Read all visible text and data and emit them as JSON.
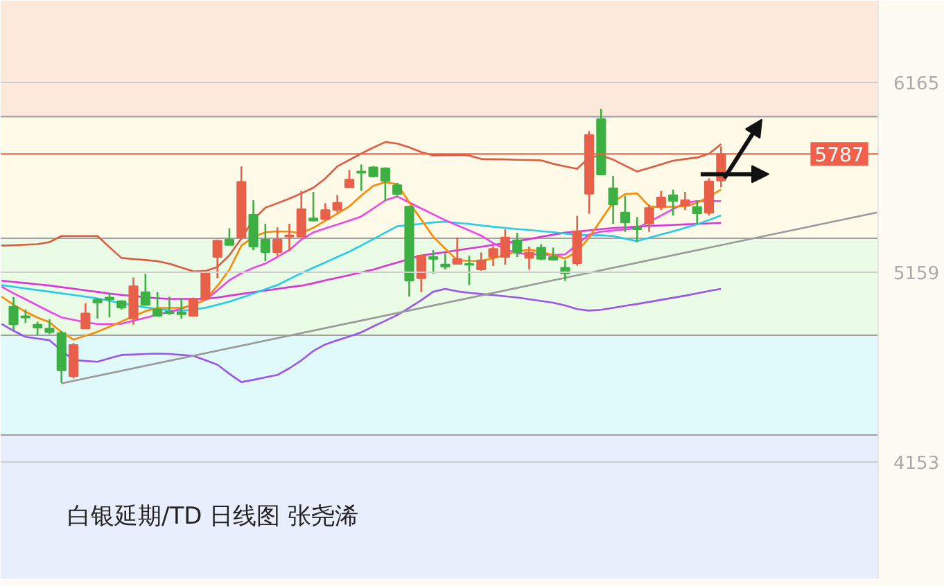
{
  "chart_data": {
    "type": "candlestick",
    "title": "白银延期/TD  日线图  张尧浠",
    "categories": [
      null,
      null,
      null,
      null,
      null,
      null,
      null,
      null,
      null,
      null,
      null,
      null,
      null,
      null,
      null,
      null,
      null,
      null,
      null,
      null,
      null,
      null,
      null,
      null,
      null,
      null,
      null,
      null,
      null,
      null,
      null,
      null,
      null,
      null,
      null,
      null,
      null,
      null,
      null,
      null,
      null,
      null,
      null,
      null,
      null,
      null,
      null,
      null,
      null,
      null,
      null,
      null,
      null,
      null,
      null,
      null,
      null,
      null,
      null,
      null,
      null,
      null,
      null,
      null,
      null,
      null,
      null,
      null,
      null,
      null,
      null,
      null,
      null,
      null
    ],
    "ohlc": [
      null,
      [
        4978,
        5029,
        4855,
        4884
      ],
      [
        4927,
        4963,
        4891,
        4920
      ],
      [
        4882,
        4898,
        4826,
        4867
      ],
      [
        4862,
        4911,
        4833,
        4843
      ],
      [
        4838,
        4850,
        4573,
        4640
      ],
      [
        4609,
        4785,
        4597,
        4775
      ],
      [
        4862,
        4995,
        4862,
        4942
      ],
      [
        5014,
        5021,
        4915,
        5000
      ],
      [
        5026,
        5048,
        4922,
        5016
      ],
      [
        5007,
        5012,
        4963,
        4973
      ],
      [
        4915,
        5132,
        4882,
        5086
      ],
      [
        5055,
        5152,
        4983,
        4987
      ],
      [
        4963,
        5055,
        4925,
        4929
      ],
      [
        4951,
        5031,
        4934,
        4944
      ],
      [
        4947,
        5023,
        4915,
        4937
      ],
      [
        4929,
        5026,
        4927,
        5019
      ],
      [
        5019,
        5168,
        5019,
        5159
      ],
      [
        5241,
        5333,
        5128,
        5327
      ],
      [
        5333,
        5393,
        5304,
        5304
      ],
      [
        5345,
        5721,
        5333,
        5639
      ],
      [
        5465,
        5542,
        5277,
        5296
      ],
      [
        5333,
        5417,
        5219,
        5267
      ],
      [
        5267,
        5398,
        5248,
        5333
      ],
      [
        5349,
        5417,
        5272,
        5356
      ],
      [
        5349,
        5591,
        5345,
        5494
      ],
      [
        5446,
        5586,
        5429,
        5434
      ],
      [
        5441,
        5526,
        5436,
        5490
      ],
      [
        5490,
        5569,
        5477,
        5528
      ],
      [
        5610,
        5702,
        5610,
        5651
      ],
      [
        5694,
        5731,
        5591,
        5687
      ],
      [
        5716,
        5723,
        5663,
        5668
      ],
      [
        5711,
        5716,
        5537,
        5644
      ],
      [
        5622,
        5634,
        5566,
        5574
      ],
      [
        5508,
        5513,
        5031,
        5115
      ],
      [
        5128,
        5253,
        5055,
        5248
      ],
      [
        5241,
        5277,
        5152,
        5231
      ],
      [
        5202,
        5260,
        5175,
        5190
      ],
      [
        5204,
        5345,
        5204,
        5231
      ],
      [
        5204,
        5248,
        5092,
        5200
      ],
      [
        5175,
        5265,
        5168,
        5224
      ],
      [
        5241,
        5296,
        5193,
        5284
      ],
      [
        5241,
        5388,
        5200,
        5345
      ],
      [
        5330,
        5369,
        5241,
        5267
      ],
      [
        5236,
        5296,
        5175,
        5265
      ],
      [
        5291,
        5309,
        5224,
        5231
      ],
      [
        5241,
        5291,
        5224,
        5226
      ],
      [
        5184,
        5224,
        5115,
        5154
      ],
      [
        5208,
        5459,
        5195,
        5378
      ],
      [
        5576,
        5908,
        5470,
        5888
      ],
      [
        5972,
        6025,
        5678,
        5678
      ],
      [
        5605,
        5670,
        5417,
        5519
      ],
      [
        5477,
        5566,
        5374,
        5424
      ],
      [
        5400,
        5453,
        5320,
        5388
      ],
      [
        5417,
        5519,
        5374,
        5501
      ],
      [
        5508,
        5591,
        5490,
        5557
      ],
      [
        5569,
        5598,
        5461,
        5537
      ],
      [
        5513,
        5586,
        5490,
        5542
      ],
      [
        5506,
        5537,
        5417,
        5472
      ],
      [
        5475,
        5658,
        5461,
        5642
      ],
      [
        5646,
        5827,
        5610,
        5787
      ],
      null,
      null,
      null,
      null,
      null,
      null,
      null,
      null,
      null,
      null,
      null,
      null,
      null
    ],
    "colors": [
      null,
      "#3cb043",
      "#3cb043",
      "#3cb043",
      "#3cb043",
      "#3cb043",
      "#e8604a",
      "#e8604a",
      "#3cb043",
      "#3cb043",
      "#3cb043",
      "#e8604a",
      "#3cb043",
      "#3cb043",
      "#3cb043",
      "#3cb043",
      "#e8604a",
      "#e8604a",
      "#e8604a",
      "#3cb043",
      "#e8604a",
      "#3cb043",
      "#3cb043",
      "#e8604a",
      "#e8604a",
      "#e8604a",
      "#3cb043",
      "#e8604a",
      "#e8604a",
      "#e8604a",
      "#3cb043",
      "#3cb043",
      "#3cb043",
      "#3cb043",
      "#3cb043",
      "#e8604a",
      "#3cb043",
      "#3cb043",
      "#e8604a",
      "#3cb043",
      "#e8604a",
      "#e8604a",
      "#e8604a",
      "#3cb043",
      "#e8604a",
      "#3cb043",
      "#3cb043",
      "#3cb043",
      "#e8604a",
      "#e8604a",
      "#3cb043",
      "#3cb043",
      "#3cb043",
      "#3cb043",
      "#e8604a",
      "#e8604a",
      "#3cb043",
      "#e8604a",
      "#3cb043",
      "#e8604a",
      "#e8604a",
      null,
      null,
      null,
      null,
      null,
      null,
      null,
      null,
      null,
      null,
      null,
      null,
      null
    ],
    "series": [
      {
        "type": "line",
        "color": "#e05a40",
        "values": [
          5301,
          5303,
          5306,
          5309,
          5320,
          5352,
          5352,
          5352,
          5352,
          5293,
          5236,
          5230,
          5225,
          5219,
          5205,
          5185,
          5165,
          5167,
          5188,
          5250,
          5339,
          5439,
          5502,
          5526,
          5550,
          5578,
          5608,
          5657,
          5721,
          5755,
          5789,
          5821,
          5850,
          5842,
          5822,
          5797,
          5779,
          5781,
          5782,
          5779,
          5760,
          5759,
          5758,
          5756,
          5755,
          5753,
          5735,
          5721,
          5708,
          5768,
          5779,
          5757,
          5725,
          5694,
          5713,
          5732,
          5751,
          5760,
          5768,
          5788,
          5839,
          null,
          null,
          null,
          null,
          null,
          null,
          null,
          null,
          null,
          null,
          null,
          null,
          null
        ]
      },
      {
        "type": "line",
        "color": "#9955ee",
        "values": [
          4886,
          4850,
          4818,
          4809,
          4800,
          4746,
          4695,
          4690,
          4686,
          4704,
          4722,
          4724,
          4727,
          4729,
          4727,
          4722,
          4717,
          4694,
          4670,
          4622,
          4578,
          4590,
          4603,
          4616,
          4651,
          4693,
          4743,
          4778,
          4800,
          4820,
          4842,
          4873,
          4903,
          4933,
          4972,
          5012,
          5057,
          5072,
          5059,
          5051,
          5045,
          5039,
          5033,
          5026,
          5017,
          5008,
          4999,
          4984,
          4965,
          4957,
          4961,
          4971,
          4982,
          4992,
          5003,
          5014,
          5025,
          5036,
          5048,
          5061,
          5072,
          null,
          null,
          null,
          null,
          null,
          null,
          null,
          null,
          null,
          null,
          null,
          null,
          null
        ]
      },
      {
        "type": "line",
        "color": "#dd33dd",
        "values": [
          5115,
          5109,
          5103,
          5096,
          5090,
          5081,
          5073,
          5064,
          5056,
          5047,
          5040,
          5034,
          5028,
          5022,
          5019,
          5019,
          5019,
          5019,
          5026,
          5036,
          5045,
          5055,
          5063,
          5072,
          5081,
          5089,
          5102,
          5117,
          5131,
          5145,
          5160,
          5174,
          5193,
          5212,
          5231,
          5249,
          5258,
          5267,
          5277,
          5286,
          5295,
          5305,
          5314,
          5325,
          5336,
          5348,
          5359,
          5370,
          5376,
          5382,
          5389,
          5394,
          5398,
          5402,
          5406,
          5408,
          5411,
          5414,
          5416,
          5419,
          5422,
          null,
          null,
          null,
          null,
          null,
          null,
          null,
          null,
          null,
          null,
          null,
          null,
          null
        ]
      },
      {
        "type": "line",
        "color": "#22ccee",
        "values": [
          5092,
          5083,
          5074,
          5066,
          5057,
          5048,
          5040,
          5031,
          5022,
          5009,
          4997,
          4984,
          4974,
          4966,
          4958,
          4956,
          4961,
          4972,
          4988,
          5004,
          5025,
          5047,
          5070,
          5092,
          5124,
          5155,
          5184,
          5212,
          5241,
          5269,
          5302,
          5336,
          5370,
          5404,
          5411,
          5417,
          5424,
          5428,
          5422,
          5416,
          5408,
          5401,
          5395,
          5389,
          5384,
          5378,
          5372,
          5365,
          5358,
          5356,
          5356,
          5352,
          5338,
          5325,
          5343,
          5360,
          5377,
          5395,
          5414,
          5437,
          5461,
          null,
          null,
          null,
          null,
          null,
          null,
          null,
          null,
          null,
          null,
          null,
          null,
          null
        ]
      },
      {
        "type": "line",
        "color": "#ee44ee",
        "values": [
          5084,
          5049,
          5017,
          4984,
          4952,
          4921,
          4908,
          4895,
          4886,
          4886,
          4887,
          4903,
          4919,
          4935,
          4951,
          4967,
          4990,
          5013,
          5064,
          5118,
          5155,
          5183,
          5206,
          5241,
          5278,
          5333,
          5371,
          5392,
          5413,
          5434,
          5456,
          5498,
          5541,
          5562,
          5530,
          5498,
          5467,
          5436,
          5409,
          5382,
          5354,
          5314,
          5283,
          5260,
          5257,
          5254,
          5251,
          5255,
          5307,
          5360,
          5375,
          5381,
          5387,
          5394,
          5428,
          5461,
          5495,
          5528,
          5537,
          5537,
          5537,
          null,
          null,
          null,
          null,
          null,
          null,
          null,
          null,
          null,
          null,
          null,
          null,
          null
        ]
      },
      {
        "type": "line",
        "color": "#ff8800",
        "values": [
          5031,
          4988,
          4951,
          4920,
          4895,
          4843,
          4803,
          4824,
          4845,
          4871,
          4899,
          4927,
          4954,
          4971,
          4971,
          4971,
          4987,
          5016,
          5087,
          5174,
          5301,
          5347,
          5372,
          5377,
          5376,
          5367,
          5396,
          5433,
          5471,
          5509,
          5567,
          5618,
          5637,
          5627,
          5530,
          5439,
          5348,
          5285,
          5224,
          5221,
          5220,
          5235,
          5252,
          5270,
          5280,
          5269,
          5251,
          5233,
          5270,
          5344,
          5438,
          5530,
          5575,
          5578,
          5510,
          5504,
          5508,
          5510,
          5527,
          5562,
          5598,
          null,
          null,
          null,
          null,
          null,
          null,
          null,
          null,
          null,
          null,
          null,
          null,
          null
        ]
      },
      {
        "type": "line",
        "color": "#999999",
        "values": [
          null,
          null,
          null,
          null,
          null,
          4571,
          null,
          null,
          null,
          null,
          null,
          null,
          null,
          null,
          null,
          null,
          null,
          null,
          null,
          null,
          null,
          null,
          null,
          null,
          null,
          null,
          null,
          null,
          null,
          null,
          null,
          null,
          null,
          null,
          null,
          null,
          null,
          null,
          null,
          null,
          null,
          null,
          null,
          null,
          null,
          null,
          null,
          null,
          null,
          null,
          null,
          null,
          null,
          null,
          null,
          null,
          null,
          null,
          null,
          null,
          null,
          null,
          null,
          null,
          null,
          null,
          null,
          null,
          null,
          null,
          null,
          null,
          null,
          5477
        ]
      }
    ],
    "ylim": [
      3538,
      6599
    ],
    "yticks": [
      4153,
      5159,
      6165
    ],
    "grid": "y",
    "ref_lines": [
      {
        "axis": "y",
        "value": 5787,
        "label": "5787",
        "color": "#f0604a"
      }
    ],
    "bands": [
      {
        "axis": "y",
        "from": 5984,
        "to": 6599,
        "color": "#fde8dc"
      },
      {
        "axis": "y",
        "from": 5340,
        "to": 5984,
        "color": "#fffbe8"
      },
      {
        "axis": "y",
        "from": 4826,
        "to": 5340,
        "color": "#eafbe6"
      },
      {
        "axis": "y",
        "from": 4298,
        "to": 4826,
        "color": "#e0fafc"
      },
      {
        "axis": "y",
        "from": 3538,
        "to": 4298,
        "color": "#e8eefc"
      }
    ]
  }
}
